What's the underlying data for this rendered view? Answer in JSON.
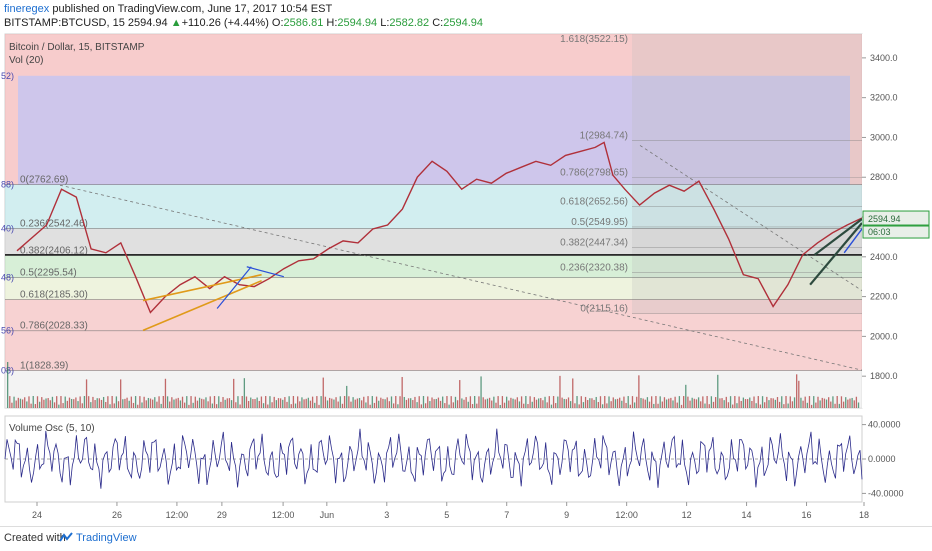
{
  "header": {
    "author": "fineregex",
    "published": "published on TradingView.com, June 17, 2017 10:54 EST",
    "symbol": "BITSTAMP:BTCUSD, 15",
    "last": "2594.94",
    "arrow": "▲",
    "change": "+110.26 (+4.44%)",
    "o_label": "O:",
    "o_value": "2586.81",
    "h_label": "H:",
    "h_value": "2594.94",
    "l_label": "L:",
    "l_value": "2582.82",
    "c_label": "C:",
    "c_value": "2594.94"
  },
  "pane_labels": {
    "title": "Bitcoin / Dollar, 15, BITSTAMP",
    "vol": "Vol (20)",
    "osc": "Volume Osc (5, 10)"
  },
  "price_tag": {
    "value": "2594.94",
    "countdown": "06:03",
    "color": "#2a9d3c"
  },
  "footer": {
    "created": "Created with",
    "brand": "TradingView"
  },
  "colors": {
    "fib_top": "#f5b8b8",
    "fib_upper": "#c0c4f5",
    "fib_mid": "#cfcfcf",
    "fib_cyan": "#b7e6ea",
    "fib_green": "#bfe8c0",
    "fib_yellow": "#e6eecb",
    "fib_bottom": "#f5b8b8",
    "candles": "#b0303a",
    "osc_line": "#2a2a8a",
    "trend_orange": "#e09a1a",
    "trend_blue": "#2a4fd8",
    "trend_dark": "#2d4a3e"
  },
  "chart_data": {
    "type": "line",
    "symbol": "BITSTAMP:BTCUSD",
    "interval": "15",
    "x_ticks": [
      "24",
      "26",
      "12:00",
      "29",
      "12:00",
      "Jun",
      "3",
      "5",
      "7",
      "9",
      "12:00",
      "12",
      "14",
      "16",
      "18"
    ],
    "y_ticks": [
      1800,
      2000,
      2200,
      2400,
      2600,
      2800,
      3000,
      3200,
      3400
    ],
    "ylim": [
      1640,
      3520
    ],
    "osc_ticks": [
      "40.0000",
      "0.0000",
      "-40.0000"
    ],
    "osc_ylim": [
      -50,
      50
    ],
    "series": [
      {
        "values": [
          [
            0,
            2430
          ],
          [
            2,
            2560
          ],
          [
            3,
            2740
          ],
          [
            4,
            2700
          ],
          [
            5,
            2440
          ],
          [
            6,
            2420
          ],
          [
            7,
            2470
          ],
          [
            8,
            2300
          ],
          [
            9,
            2120
          ],
          [
            10,
            2200
          ],
          [
            11,
            2260
          ],
          [
            12,
            2300
          ],
          [
            13,
            2240
          ],
          [
            14,
            2300
          ],
          [
            15,
            2260
          ],
          [
            16,
            2250
          ],
          [
            17,
            2290
          ],
          [
            18,
            2340
          ],
          [
            19,
            2380
          ],
          [
            20,
            2390
          ],
          [
            21,
            2440
          ],
          [
            22,
            2480
          ],
          [
            23,
            2470
          ],
          [
            24,
            2540
          ],
          [
            25,
            2560
          ],
          [
            26,
            2640
          ],
          [
            27,
            2800
          ],
          [
            28,
            2880
          ],
          [
            29,
            2830
          ],
          [
            30,
            2740
          ],
          [
            31,
            2790
          ],
          [
            32,
            2770
          ],
          [
            33,
            2820
          ],
          [
            34,
            2850
          ],
          [
            35,
            2880
          ],
          [
            36,
            2860
          ],
          [
            37,
            2910
          ],
          [
            38,
            2930
          ],
          [
            39,
            2950
          ],
          [
            39.6,
            2975
          ],
          [
            40.2,
            2810
          ],
          [
            41,
            2740
          ],
          [
            42,
            2660
          ],
          [
            43,
            2720
          ],
          [
            44,
            2760
          ],
          [
            45,
            2730
          ],
          [
            46,
            2780
          ],
          [
            47,
            2640
          ],
          [
            48,
            2490
          ],
          [
            49,
            2310
          ],
          [
            50,
            2290
          ],
          [
            51,
            2150
          ],
          [
            52,
            2260
          ],
          [
            53,
            2410
          ],
          [
            54,
            2470
          ],
          [
            55,
            2520
          ],
          [
            56,
            2560
          ],
          [
            57,
            2594.94
          ]
        ]
      }
    ],
    "fib_left": {
      "levels": [
        "0(2762.69)",
        "0.236(2542.46)",
        "0.382(2406.12)",
        "0.5(2295.54)",
        "0.618(2185.30)",
        "0.786(2028.33)",
        "1(1828.39)"
      ],
      "prices": [
        2762.69,
        2542.46,
        2406.12,
        2295.54,
        2185.3,
        2028.33,
        1828.39
      ],
      "cut_labels": [
        "52)",
        "88)",
        "40)",
        "48)",
        "56)",
        "08)"
      ]
    },
    "fib_right": {
      "levels": [
        "1.618(3522.15)",
        "1(2984.74)",
        "0.786(2798.65)",
        "0.618(2652.56)",
        "0.5(2549.95)",
        "0.382(2447.34)",
        "0.236(2320.38)",
        "0(2115.16)"
      ],
      "prices": [
        3522.15,
        2984.74,
        2798.65,
        2652.56,
        2549.95,
        2447.34,
        2320.38,
        2115.16
      ]
    }
  }
}
